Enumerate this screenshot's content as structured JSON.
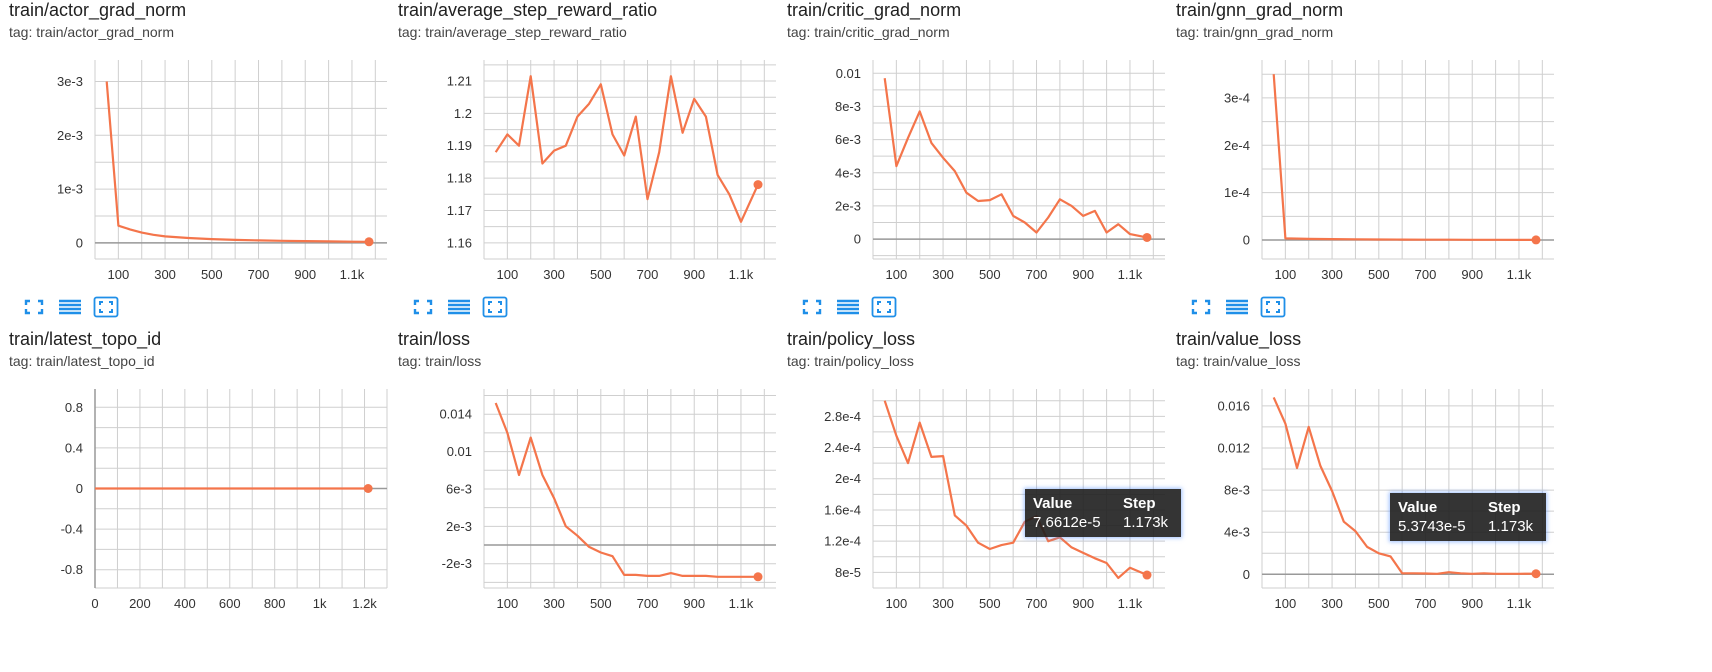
{
  "colors": {
    "line": "#f4754b",
    "grid": "#cfcfcf",
    "axis": "#999999",
    "icon": "#1f8fe8"
  },
  "icons": [
    "fit-domain-icon",
    "toggle-log-icon",
    "expand-icon"
  ],
  "cards": [
    {
      "title": "train/actor_grad_norm",
      "tag": "tag: train/actor_grad_norm",
      "chart_data": {
        "type": "line",
        "x": [
          50,
          100,
          150,
          200,
          250,
          300,
          400,
          500,
          600,
          700,
          800,
          900,
          1000,
          1100,
          1173
        ],
        "y": [
          0.003,
          0.00032,
          0.00025,
          0.00019,
          0.00015,
          0.00012,
          9e-05,
          7e-05,
          5.5e-05,
          4.5e-05,
          3.8e-05,
          3.2e-05,
          2.8e-05,
          2.2e-05,
          2e-05
        ],
        "xlim": [
          0,
          1250
        ],
        "ylim": [
          -0.0003,
          0.0034
        ],
        "xticks": [
          100,
          300,
          500,
          700,
          900,
          1100
        ],
        "xtick_labels": [
          "100",
          "300",
          "500",
          "700",
          "900",
          "1.1k"
        ],
        "yticks": [
          0,
          0.001,
          0.002,
          0.003
        ],
        "ytick_labels": [
          "0",
          "1e-3",
          "2e-3",
          "3e-3"
        ],
        "zero_line": true,
        "grid": true
      }
    },
    {
      "title": "train/average_step_reward_ratio",
      "tag": "tag: train/average_step_reward_ratio",
      "chart_data": {
        "type": "line",
        "x": [
          50,
          100,
          150,
          200,
          250,
          300,
          350,
          400,
          450,
          500,
          550,
          600,
          650,
          700,
          750,
          800,
          850,
          900,
          950,
          1000,
          1050,
          1100,
          1173
        ],
        "y": [
          1.188,
          1.1935,
          1.19,
          1.2115,
          1.1845,
          1.1885,
          1.19,
          1.199,
          1.203,
          1.209,
          1.1935,
          1.187,
          1.199,
          1.1735,
          1.188,
          1.2115,
          1.194,
          1.2045,
          1.199,
          1.181,
          1.175,
          1.1665,
          1.178
        ],
        "xlim": [
          0,
          1250
        ],
        "ylim": [
          1.155,
          1.2165
        ],
        "xticks": [
          100,
          300,
          500,
          700,
          900,
          1100
        ],
        "xtick_labels": [
          "100",
          "300",
          "500",
          "700",
          "900",
          "1.1k"
        ],
        "yticks": [
          1.16,
          1.17,
          1.18,
          1.19,
          1.2,
          1.21
        ],
        "ytick_labels": [
          "1.16",
          "1.17",
          "1.18",
          "1.19",
          "1.2",
          "1.21"
        ],
        "zero_line": false,
        "grid": true
      }
    },
    {
      "title": "train/critic_grad_norm",
      "tag": "tag: train/critic_grad_norm",
      "chart_data": {
        "type": "line",
        "x": [
          50,
          100,
          150,
          200,
          250,
          300,
          350,
          400,
          450,
          500,
          550,
          600,
          650,
          700,
          750,
          800,
          850,
          900,
          950,
          1000,
          1050,
          1100,
          1173
        ],
        "y": [
          0.0097,
          0.0044,
          0.0061,
          0.0077,
          0.0058,
          0.0049,
          0.0041,
          0.0028,
          0.0023,
          0.00235,
          0.0027,
          0.0014,
          0.001,
          0.0004,
          0.0013,
          0.0024,
          0.002,
          0.0014,
          0.0017,
          0.0004,
          0.0009,
          0.0003,
          0.0001
        ],
        "xlim": [
          0,
          1250
        ],
        "ylim": [
          -0.0012,
          0.0108
        ],
        "xticks": [
          100,
          300,
          500,
          700,
          900,
          1100
        ],
        "xtick_labels": [
          "100",
          "300",
          "500",
          "700",
          "900",
          "1.1k"
        ],
        "yticks": [
          0,
          0.002,
          0.004,
          0.006,
          0.008,
          0.01
        ],
        "ytick_labels": [
          "0",
          "2e-3",
          "4e-3",
          "6e-3",
          "8e-3",
          "0.01"
        ],
        "zero_line": true,
        "grid": true
      }
    },
    {
      "title": "train/gnn_grad_norm",
      "tag": "tag: train/gnn_grad_norm",
      "chart_data": {
        "type": "line",
        "x": [
          50,
          100,
          200,
          300,
          400,
          500,
          600,
          700,
          800,
          900,
          1000,
          1100,
          1173
        ],
        "y": [
          0.00035,
          3.5e-06,
          2.5e-06,
          2e-06,
          1.5e-06,
          1.2e-06,
          1e-06,
          8e-07,
          7e-07,
          6e-07,
          5e-07,
          4e-07,
          3e-07
        ],
        "xlim": [
          0,
          1250
        ],
        "ylim": [
          -4e-05,
          0.00038
        ],
        "xticks": [
          100,
          300,
          500,
          700,
          900,
          1100
        ],
        "xtick_labels": [
          "100",
          "300",
          "500",
          "700",
          "900",
          "1.1k"
        ],
        "yticks": [
          0,
          0.0001,
          0.0002,
          0.0003
        ],
        "ytick_labels": [
          "0",
          "1e-4",
          "2e-4",
          "3e-4"
        ],
        "zero_line": true,
        "grid": true
      }
    },
    {
      "title": "train/latest_topo_id",
      "tag": "tag: train/latest_topo_id",
      "chart_data": {
        "type": "line",
        "x": [
          0,
          1216
        ],
        "y": [
          0,
          0
        ],
        "xlim": [
          0,
          1300
        ],
        "ylim": [
          -0.98,
          0.98
        ],
        "xticks": [
          0,
          200,
          400,
          600,
          800,
          1000,
          1200
        ],
        "xtick_labels": [
          "0",
          "200",
          "400",
          "600",
          "800",
          "1k",
          "1.2k"
        ],
        "yticks": [
          -0.8,
          -0.4,
          0,
          0.4,
          0.8
        ],
        "ytick_labels": [
          "-0.8",
          "-0.4",
          "0",
          "0.4",
          "0.8"
        ],
        "zero_line": true,
        "y_axis_line": true,
        "grid": true
      }
    },
    {
      "title": "train/loss",
      "tag": "tag: train/loss",
      "chart_data": {
        "type": "line",
        "x": [
          50,
          100,
          150,
          200,
          250,
          300,
          350,
          400,
          450,
          500,
          550,
          600,
          650,
          700,
          750,
          800,
          850,
          900,
          950,
          1000,
          1050,
          1100,
          1173
        ],
        "y": [
          0.0152,
          0.012,
          0.0075,
          0.0115,
          0.0075,
          0.005,
          0.002,
          0.001,
          -0.0002,
          -0.0008,
          -0.0012,
          -0.0032,
          -0.0032,
          -0.0033,
          -0.0033,
          -0.003,
          -0.0033,
          -0.0033,
          -0.0033,
          -0.0034,
          -0.0034,
          -0.0034,
          -0.0034
        ],
        "xlim": [
          0,
          1250
        ],
        "ylim": [
          -0.0046,
          0.0167
        ],
        "xticks": [
          100,
          300,
          500,
          700,
          900,
          1100
        ],
        "xtick_labels": [
          "100",
          "300",
          "500",
          "700",
          "900",
          "1.1k"
        ],
        "yticks": [
          -0.002,
          0.002,
          0.006,
          0.01,
          0.014
        ],
        "ytick_labels": [
          "-2e-3",
          "2e-3",
          "6e-3",
          "0.01",
          "0.014"
        ],
        "zero_line": true,
        "grid": true
      }
    },
    {
      "title": "train/policy_loss",
      "tag": "tag: train/policy_loss",
      "chart_data": {
        "type": "line",
        "x": [
          50,
          100,
          150,
          200,
          250,
          300,
          350,
          400,
          450,
          500,
          550,
          600,
          650,
          700,
          750,
          800,
          850,
          900,
          950,
          1000,
          1050,
          1100,
          1173
        ],
        "y": [
          0.0003,
          0.000255,
          0.00022,
          0.000272,
          0.000228,
          0.000229,
          0.000153,
          0.00014,
          0.000118,
          0.00011,
          0.000115,
          0.000118,
          0.000145,
          0.000152,
          0.00012,
          0.000125,
          0.000112,
          0.000105,
          9.8e-05,
          9.2e-05,
          7.3e-05,
          8.6e-05,
          7.66e-05
        ],
        "xlim": [
          0,
          1250
        ],
        "ylim": [
          6e-05,
          0.000315
        ],
        "xticks": [
          100,
          300,
          500,
          700,
          900,
          1100
        ],
        "xtick_labels": [
          "100",
          "300",
          "500",
          "700",
          "900",
          "1.1k"
        ],
        "yticks": [
          8e-05,
          0.00012,
          0.00016,
          0.0002,
          0.00024,
          0.00028
        ],
        "ytick_labels": [
          "8e-5",
          "1.2e-4",
          "1.6e-4",
          "2e-4",
          "2.4e-4",
          "2.8e-4"
        ],
        "zero_line": false,
        "grid": true
      },
      "tooltip": {
        "value_header": "Value",
        "step_header": "Step",
        "value": "7.6612e-5",
        "step": "1.173k"
      }
    },
    {
      "title": "train/value_loss",
      "tag": "tag: train/value_loss",
      "chart_data": {
        "type": "line",
        "x": [
          50,
          100,
          150,
          200,
          250,
          300,
          350,
          400,
          450,
          500,
          550,
          600,
          650,
          700,
          750,
          800,
          850,
          900,
          950,
          1000,
          1050,
          1100,
          1173
        ],
        "y": [
          0.0168,
          0.0143,
          0.0101,
          0.014,
          0.0103,
          0.0079,
          0.005,
          0.0041,
          0.0026,
          0.002,
          0.0017,
          0.0001,
          0.0001,
          8e-05,
          5e-05,
          0.0002,
          0.0001,
          5e-05,
          0.0001,
          5e-05,
          5e-05,
          5e-05,
          5.37e-05
        ],
        "xlim": [
          0,
          1250
        ],
        "ylim": [
          -0.0013,
          0.0176
        ],
        "xticks": [
          100,
          300,
          500,
          700,
          900,
          1100
        ],
        "xtick_labels": [
          "100",
          "300",
          "500",
          "700",
          "900",
          "1.1k"
        ],
        "yticks": [
          0,
          0.004,
          0.008,
          0.012,
          0.016
        ],
        "ytick_labels": [
          "0",
          "4e-3",
          "8e-3",
          "0.012",
          "0.016"
        ],
        "zero_line": true,
        "grid": true
      },
      "tooltip": {
        "value_header": "Value",
        "step_header": "Step",
        "value": "5.3743e-5",
        "step": "1.173k"
      }
    }
  ]
}
